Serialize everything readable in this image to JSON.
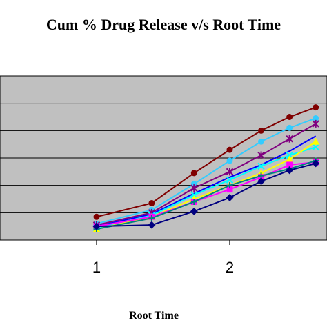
{
  "chart_data": {
    "type": "line",
    "title": "Cum % Drug Release v/s Root Time",
    "xlabel": "Root Time",
    "ylabel": "",
    "xlim": [
      0.0,
      2.7
    ],
    "ylim": [
      0,
      120
    ],
    "x_ticks": [
      "1",
      "2"
    ],
    "x_tick_values": [
      1,
      2
    ],
    "grid": true,
    "plot_background": "#c0c0c0",
    "x": [
      1.0,
      1.414,
      1.732,
      2.0,
      2.236,
      2.449,
      2.646
    ],
    "series": [
      {
        "color": "#800000",
        "marker": "circle",
        "values": [
          17,
          27,
          49,
          66,
          80,
          90,
          97
        ]
      },
      {
        "color": "#33ccff",
        "marker": "circle",
        "values": [
          12,
          22,
          41,
          58,
          72,
          82,
          89
        ]
      },
      {
        "color": "#800080",
        "marker": "star",
        "values": [
          11,
          20,
          38,
          50,
          62,
          74,
          85
        ]
      },
      {
        "color": "#0000ff",
        "marker": "none",
        "values": [
          10,
          19,
          34,
          46,
          55,
          65,
          76
        ]
      },
      {
        "color": "#00ffff",
        "marker": "x",
        "values": [
          9,
          18,
          33,
          44,
          54,
          62,
          68
        ]
      },
      {
        "color": "#ffff00",
        "marker": "triangle",
        "values": [
          8,
          17,
          30,
          40,
          49,
          59,
          72
        ]
      },
      {
        "color": "#ff00ff",
        "marker": "square",
        "values": [
          10,
          17,
          28,
          37,
          46,
          55,
          57
        ]
      },
      {
        "color": "#008080",
        "marker": "plus",
        "values": [
          8,
          16,
          28,
          40,
          47,
          52,
          58
        ]
      },
      {
        "color": "#000080",
        "marker": "diamond",
        "values": [
          10,
          11,
          21,
          31,
          43,
          51,
          56
        ]
      }
    ]
  }
}
